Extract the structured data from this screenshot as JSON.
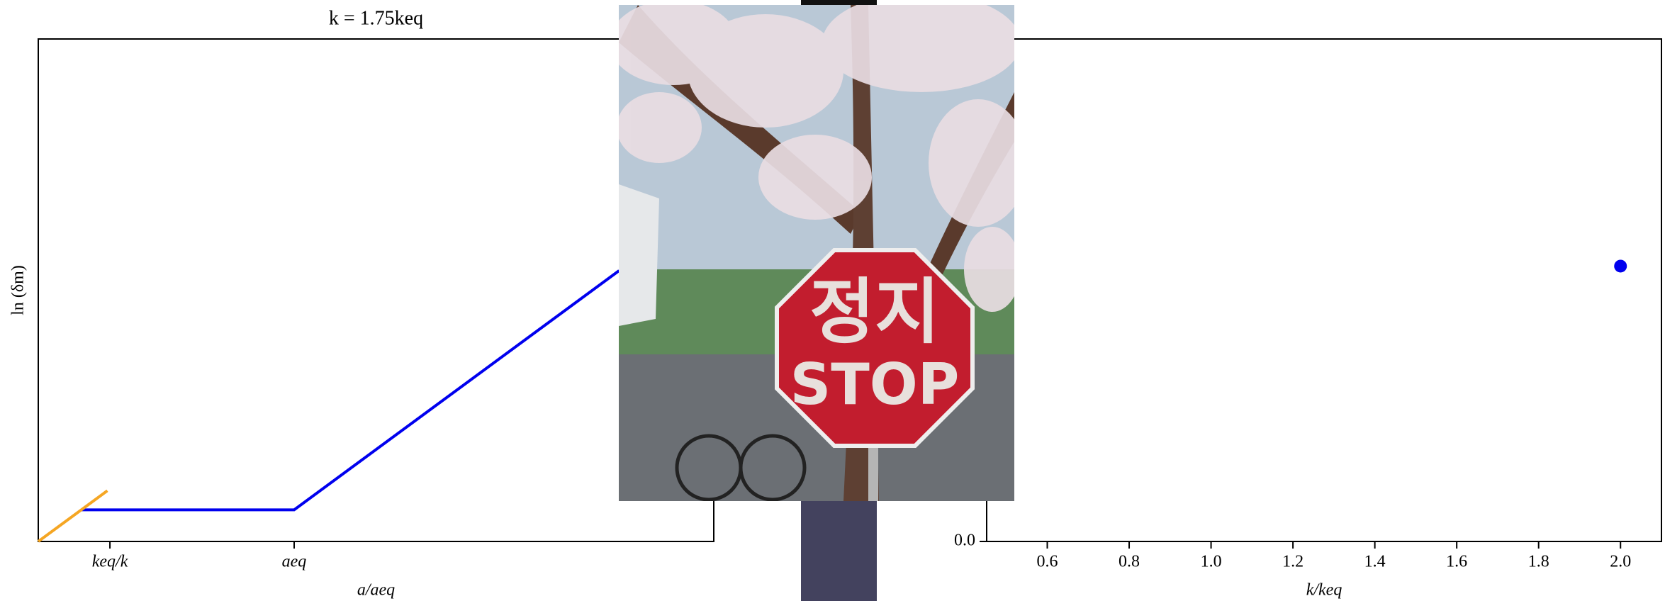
{
  "chart_data": [
    {
      "type": "line",
      "title": "k = 1.75keq",
      "xlabel": "a/aeq",
      "ylabel": "ln (δm)",
      "xlim": [
        0,
        2.64
      ],
      "ylim": [
        0,
        1
      ],
      "xticks": [
        {
          "value": 0.28,
          "label": "keq/k"
        },
        {
          "value": 1,
          "label": "aeq"
        }
      ],
      "series": [
        {
          "color": "#0000ee",
          "x": [
            0.17,
            1,
            2.27
          ],
          "values": [
            0.063,
            0.063,
            0.539
          ]
        },
        {
          "color": "#f5a623",
          "x": [
            0,
            0.27
          ],
          "values": [
            0,
            0.101
          ]
        }
      ]
    },
    {
      "type": "scatter",
      "xlabel": "k/keq",
      "xlim": [
        0.452,
        2.1
      ],
      "ylim": [
        0,
        1
      ],
      "xticks": [
        0.6,
        0.8,
        {
          "value": 1,
          "label": "1.0"
        },
        1.2,
        1.4,
        1.6,
        1.8,
        {
          "value": 2,
          "label": "2.0"
        }
      ],
      "yticks": [
        {
          "value": 0,
          "label": "0.0"
        }
      ],
      "series": [
        {
          "color": "#0000ee",
          "x": [
            2.0
          ],
          "values": [
            0.548
          ]
        }
      ]
    }
  ],
  "photo": {
    "sign_korean": "정지",
    "sign_english": "STOP"
  }
}
